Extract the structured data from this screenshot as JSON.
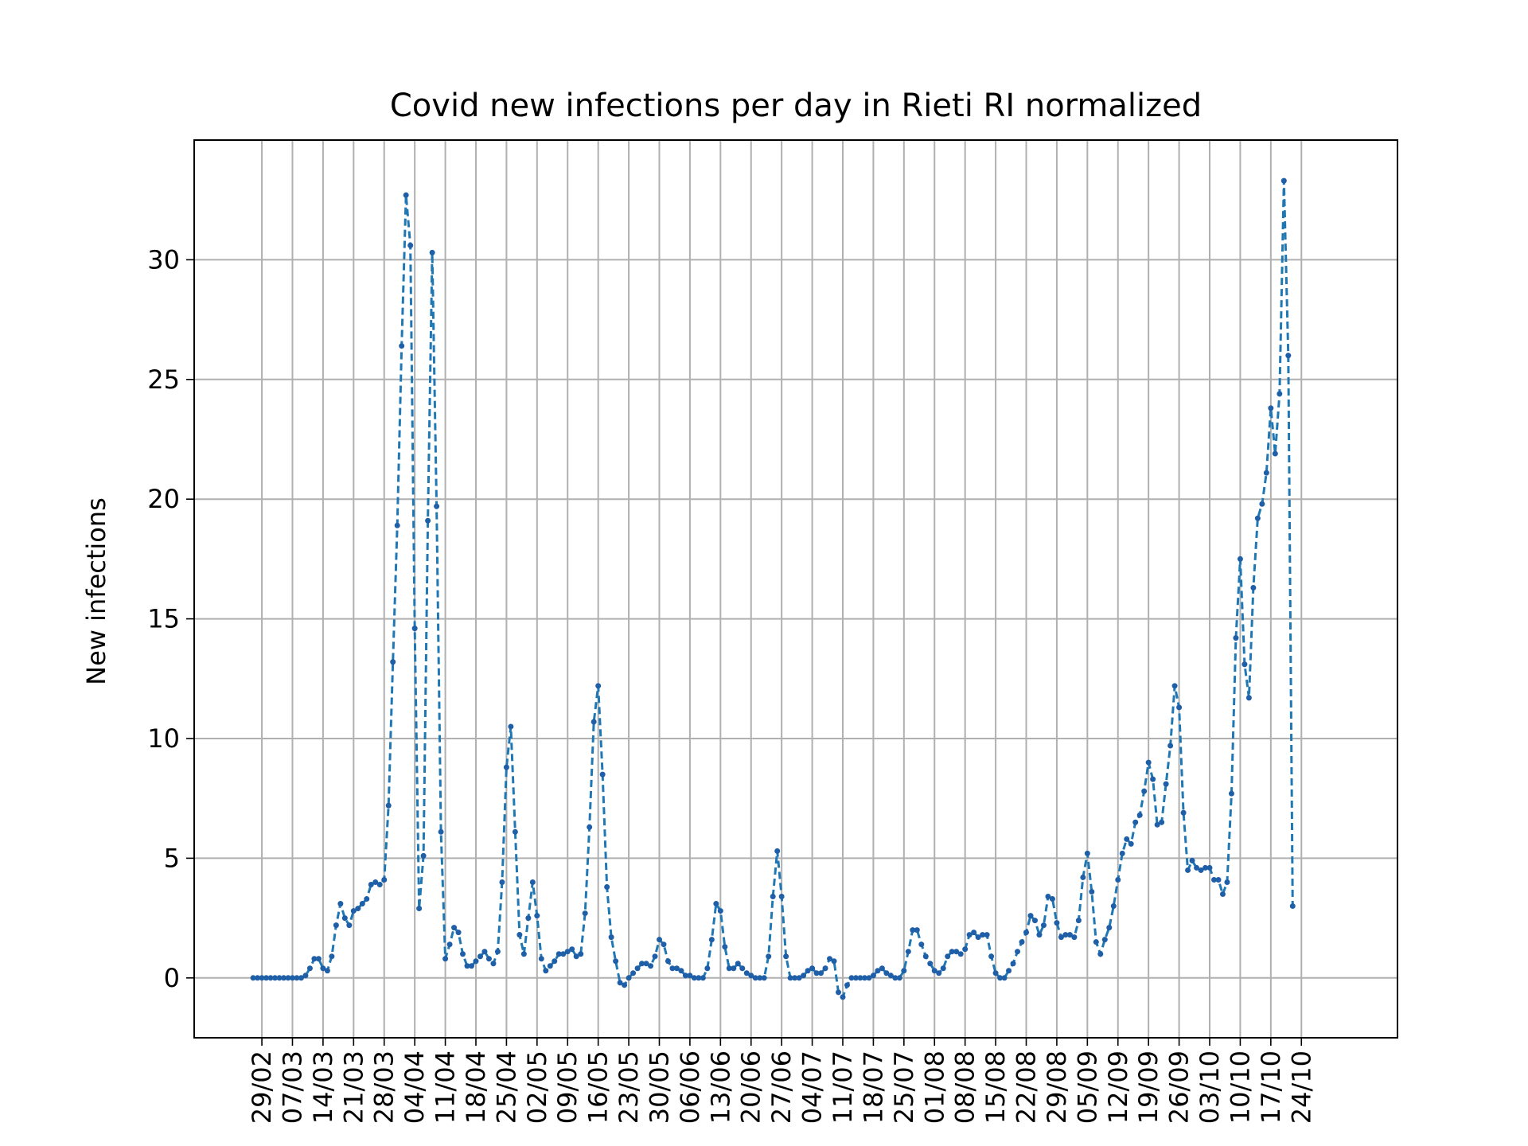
{
  "chart_data": {
    "type": "line",
    "title": "Covid new infections per day in Rieti RI normalized",
    "xlabel": "",
    "ylabel": "New infections",
    "ylim": [
      -2.5,
      35
    ],
    "yticks": [
      0,
      5,
      10,
      15,
      20,
      25,
      30
    ],
    "xticks": [
      "29/02",
      "07/03",
      "14/03",
      "21/03",
      "28/03",
      "04/04",
      "11/04",
      "18/04",
      "25/04",
      "02/05",
      "09/05",
      "16/05",
      "23/05",
      "30/05",
      "06/06",
      "13/06",
      "20/06",
      "27/06",
      "04/07",
      "11/07",
      "18/07",
      "25/07",
      "01/08",
      "08/08",
      "15/08",
      "22/08",
      "29/08",
      "05/09",
      "12/09",
      "19/09",
      "26/09",
      "03/10",
      "10/10",
      "17/10",
      "24/10"
    ],
    "grid": true,
    "line_style": "dashed",
    "marker": "dot",
    "color": "#1f77b4",
    "start_date": "2020-02-27",
    "values": [
      0,
      0,
      0,
      0,
      0,
      0,
      0,
      0,
      0,
      0,
      0,
      0,
      0.1,
      0.4,
      0.8,
      0.8,
      0.4,
      0.3,
      0.9,
      2.2,
      3.1,
      2.5,
      2.2,
      2.8,
      2.9,
      3.1,
      3.3,
      3.9,
      4.0,
      3.9,
      4.1,
      7.2,
      13.2,
      18.9,
      26.4,
      32.7,
      30.6,
      14.6,
      2.9,
      5.1,
      19.1,
      30.3,
      19.7,
      6.1,
      0.8,
      1.4,
      2.1,
      1.9,
      1.0,
      0.5,
      0.5,
      0.7,
      0.9,
      1.1,
      0.8,
      0.6,
      1.1,
      4.0,
      8.8,
      10.5,
      6.1,
      1.8,
      1.0,
      2.5,
      4.0,
      2.6,
      0.8,
      0.3,
      0.5,
      0.7,
      1.0,
      1.0,
      1.1,
      1.2,
      0.9,
      1.0,
      2.7,
      6.3,
      10.7,
      12.2,
      8.5,
      3.8,
      1.7,
      0.7,
      -0.2,
      -0.3,
      0,
      0.2,
      0.4,
      0.6,
      0.6,
      0.5,
      0.9,
      1.6,
      1.4,
      0.7,
      0.4,
      0.4,
      0.3,
      0.1,
      0.1,
      0,
      0,
      0,
      0.4,
      1.6,
      3.1,
      2.8,
      1.3,
      0.4,
      0.4,
      0.6,
      0.4,
      0.2,
      0.1,
      0,
      0,
      0,
      0.9,
      3.4,
      5.3,
      3.4,
      0.9,
      0,
      0,
      0,
      0.1,
      0.3,
      0.4,
      0.2,
      0.2,
      0.4,
      0.8,
      0.7,
      -0.6,
      -0.8,
      -0.3,
      0,
      0,
      0,
      0,
      0,
      0.1,
      0.3,
      0.4,
      0.2,
      0.1,
      0,
      0,
      0.3,
      1.1,
      2.0,
      2.0,
      1.4,
      0.9,
      0.6,
      0.3,
      0.2,
      0.4,
      0.9,
      1.1,
      1.1,
      1.0,
      1.2,
      1.8,
      1.9,
      1.7,
      1.8,
      1.8,
      0.9,
      0.2,
      0,
      0,
      0.3,
      0.6,
      1.1,
      1.5,
      1.9,
      2.6,
      2.4,
      1.8,
      2.2,
      3.4,
      3.3,
      2.3,
      1.7,
      1.8,
      1.8,
      1.7,
      2.4,
      4.2,
      5.2,
      3.6,
      1.5,
      1.0,
      1.6,
      2.1,
      3.0,
      4.1,
      5.2,
      5.8,
      5.6,
      6.5,
      6.8,
      7.8,
      9.0,
      8.3,
      6.4,
      6.5,
      8.1,
      9.7,
      12.2,
      11.3,
      6.9,
      4.5,
      4.9,
      4.6,
      4.5,
      4.6,
      4.6,
      4.1,
      4.1,
      3.5,
      4.0,
      7.7,
      14.2,
      17.5,
      13.1,
      11.7,
      16.3,
      19.2,
      19.8,
      21.1,
      23.8,
      21.9,
      24.4,
      33.3,
      26.0,
      3.0
    ]
  }
}
